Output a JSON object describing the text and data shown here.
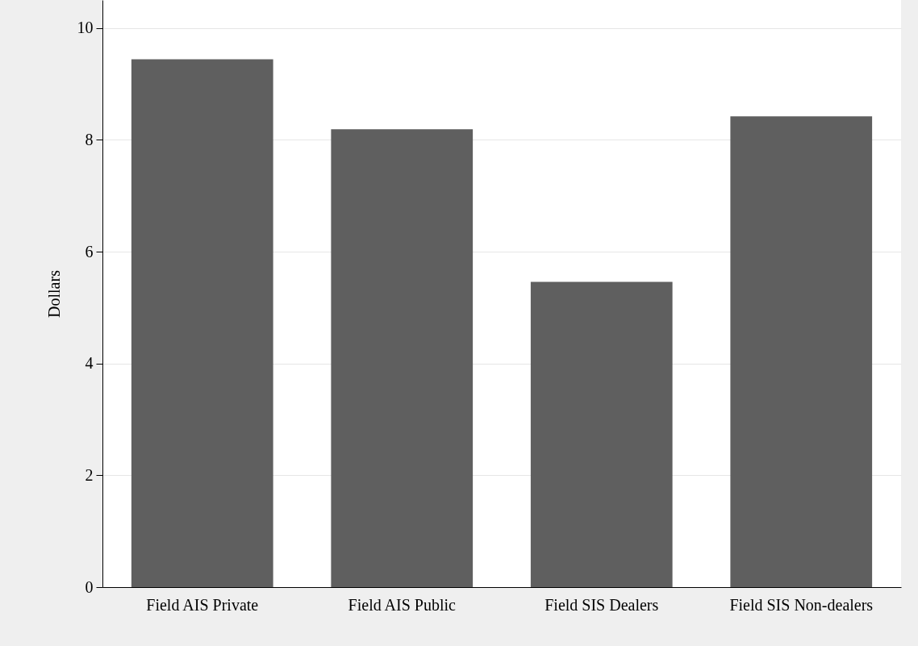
{
  "chart_data": {
    "type": "bar",
    "ylabel": "Dollars",
    "categories": [
      "Field AIS Private",
      "Field AIS Public",
      "Field SIS Dealers",
      "Field SIS Non-dealers"
    ],
    "values": [
      9.44,
      8.19,
      5.46,
      8.42
    ],
    "color": "#5f5f5f",
    "ylim": [
      0,
      10.5
    ],
    "yticks": [
      0,
      2,
      4,
      6,
      8,
      10
    ],
    "grid": "y"
  }
}
